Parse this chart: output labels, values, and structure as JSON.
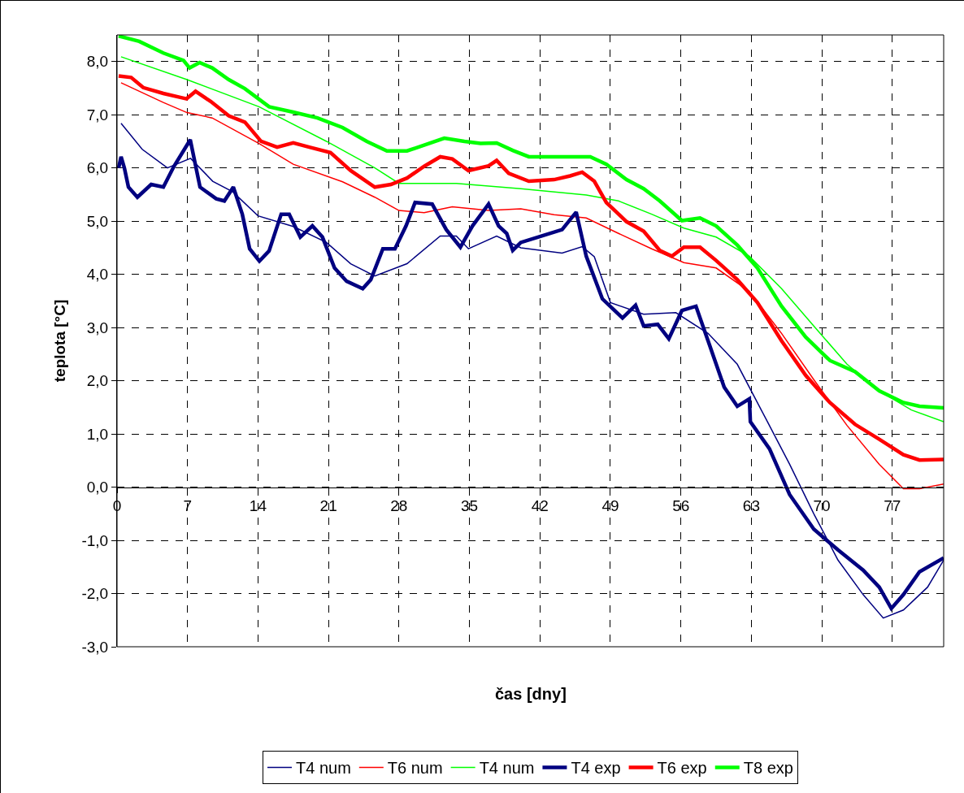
{
  "chart_data": {
    "type": "line",
    "xlabel": "čas [dny]",
    "ylabel": "teplota [°C]",
    "xlim": [
      0,
      82.1
    ],
    "xticks": [
      0,
      7,
      14,
      21,
      28,
      35,
      42,
      49,
      56,
      63,
      70,
      77
    ],
    "ylim": [
      -3,
      8.5
    ],
    "yticks": [
      {
        "value": -3,
        "label": "-3,0"
      },
      {
        "value": -2,
        "label": "-2,0"
      },
      {
        "value": -1,
        "label": "-1,0"
      },
      {
        "value": 0,
        "label": "0,0"
      },
      {
        "value": 1,
        "label": "1,0"
      },
      {
        "value": 2,
        "label": "2,0"
      },
      {
        "value": 3,
        "label": "3,0"
      },
      {
        "value": 4,
        "label": "4,0"
      },
      {
        "value": 5,
        "label": "5,0"
      },
      {
        "value": 6,
        "label": "6,0"
      },
      {
        "value": 7,
        "label": "7,0"
      },
      {
        "value": 8,
        "label": "8,0"
      }
    ],
    "grid": true,
    "legend": "bottom",
    "series": [
      {
        "name": "T4 num",
        "color": "#000080",
        "x": [
          0.4,
          2.5,
          5.0,
          7.3,
          9.5,
          11.5,
          14,
          17.5,
          20.8,
          23.2,
          25.6,
          28.8,
          32.1,
          33.7,
          34.9,
          37.7,
          40.1,
          44.2,
          46.2,
          47.4,
          49,
          52.3,
          55.5,
          58.7,
          61.6,
          64.4,
          66.8,
          69.2,
          71.6,
          74.1,
          76.1,
          78.1,
          80.5,
          82.1
        ],
        "values": [
          6.84,
          6.35,
          6.0,
          6.18,
          5.75,
          5.55,
          5.1,
          4.9,
          4.6,
          4.2,
          3.97,
          4.2,
          4.72,
          4.72,
          4.48,
          4.72,
          4.5,
          4.4,
          4.52,
          4.33,
          3.47,
          3.25,
          3.28,
          2.89,
          2.31,
          1.3,
          0.43,
          -0.5,
          -1.37,
          -2.02,
          -2.46,
          -2.31,
          -1.88,
          -1.37
        ]
      },
      {
        "name": "T6 num",
        "color": "#ff0000",
        "x": [
          0.4,
          4.6,
          6.95,
          9.45,
          14.1,
          17.5,
          22.4,
          25.6,
          28,
          30.5,
          33.3,
          36.9,
          40.1,
          43.4,
          46.6,
          49.8,
          53.1,
          56.3,
          59.5,
          62.8,
          66,
          69.2,
          72.5,
          75.7,
          78.1,
          79.7,
          82.1
        ],
        "values": [
          7.6,
          7.23,
          7.04,
          6.94,
          6.46,
          6.07,
          5.74,
          5.45,
          5.2,
          5.16,
          5.27,
          5.2,
          5.23,
          5.12,
          5.06,
          4.77,
          4.48,
          4.22,
          4.12,
          3.68,
          2.89,
          2.02,
          1.16,
          0.43,
          -0.03,
          -0.03,
          0.06
        ]
      },
      {
        "name": "T4 num",
        "color": "#00ff00",
        "x": [
          0.4,
          6.95,
          14.1,
          20.8,
          25.6,
          28,
          33.7,
          40.1,
          46.6,
          49.8,
          53.1,
          56.3,
          59.5,
          62.8,
          66,
          69.2,
          72.5,
          75.7,
          78.9,
          82.1
        ],
        "values": [
          8.09,
          7.66,
          7.15,
          6.5,
          6.0,
          5.71,
          5.71,
          5.61,
          5.49,
          5.38,
          5.13,
          4.87,
          4.7,
          4.34,
          3.73,
          3.03,
          2.31,
          1.81,
          1.45,
          1.23
        ]
      },
      {
        "name": "T4 exp",
        "color": "#000080",
        "x": [
          0.16,
          0.4,
          0.73,
          1.13,
          2.02,
          3.39,
          4.6,
          5.65,
          7.27,
          8.24,
          9.85,
          10.66,
          11.55,
          12.44,
          13.17,
          14.14,
          15.1,
          16.3,
          17.1,
          18.2,
          19.4,
          20.4,
          21.6,
          22.8,
          24.4,
          25.2,
          26.4,
          27.6,
          28.7,
          29.6,
          31.3,
          32.7,
          34.1,
          35.3,
          36.9,
          37.9,
          38.7,
          39.3,
          40.1,
          41.8,
          44.2,
          45.6,
          46.6,
          48.2,
          50.2,
          51.5,
          52.3,
          53.7,
          54.8,
          56.1,
          57.5,
          58.7,
          60.3,
          61.6,
          62.8,
          62.9,
          64.8,
          66.8,
          69.2,
          71.6,
          74.1,
          75.7,
          76.9,
          78.1,
          79.7,
          82.1
        ],
        "values": [
          6.0,
          6.21,
          6.0,
          5.64,
          5.45,
          5.69,
          5.64,
          6.03,
          6.53,
          5.64,
          5.42,
          5.38,
          5.64,
          5.13,
          4.48,
          4.25,
          4.44,
          5.13,
          5.13,
          4.7,
          4.91,
          4.7,
          4.12,
          3.87,
          3.73,
          3.9,
          4.48,
          4.48,
          4.91,
          5.35,
          5.32,
          4.84,
          4.51,
          4.91,
          5.32,
          4.91,
          4.77,
          4.45,
          4.6,
          4.7,
          4.84,
          5.17,
          4.34,
          3.54,
          3.18,
          3.42,
          3.03,
          3.06,
          2.79,
          3.32,
          3.4,
          2.75,
          1.88,
          1.52,
          1.66,
          1.23,
          0.72,
          -0.14,
          -0.79,
          -1.18,
          -1.56,
          -1.88,
          -2.28,
          -2.02,
          -1.59,
          -1.33
        ]
      },
      {
        "name": "T6 exp",
        "color": "#ff0000",
        "x": [
          0.16,
          1.4,
          2.6,
          4.6,
          6.2,
          6.9,
          7.8,
          9.3,
          11.1,
          12.7,
          14.3,
          15.9,
          17.5,
          19.1,
          21.2,
          23.2,
          25.6,
          27.2,
          28.8,
          30.5,
          32.1,
          33.3,
          34.9,
          36.9,
          37.7,
          38.9,
          40.9,
          43.4,
          45,
          46.2,
          47.4,
          48.6,
          50.6,
          52.3,
          53.9,
          55.1,
          56.3,
          57.9,
          59.5,
          61.6,
          63.6,
          66,
          68.4,
          70.8,
          73.3,
          75.7,
          78.1,
          79.7,
          82.1
        ],
        "values": [
          7.73,
          7.7,
          7.51,
          7.4,
          7.33,
          7.3,
          7.44,
          7.25,
          6.98,
          6.86,
          6.5,
          6.39,
          6.47,
          6.39,
          6.29,
          5.95,
          5.64,
          5.69,
          5.81,
          6.03,
          6.21,
          6.17,
          5.95,
          6.04,
          6.14,
          5.9,
          5.75,
          5.78,
          5.85,
          5.92,
          5.75,
          5.35,
          4.99,
          4.81,
          4.45,
          4.34,
          4.51,
          4.51,
          4.26,
          3.9,
          3.47,
          2.75,
          2.1,
          1.59,
          1.18,
          0.9,
          0.61,
          0.51,
          0.52
        ]
      },
      {
        "name": "T8 exp",
        "color": "#00ff00",
        "x": [
          0.16,
          2.2,
          4.6,
          6.6,
          7.2,
          8.2,
          9.45,
          11.1,
          12.7,
          15.1,
          17.5,
          19.9,
          22.4,
          24.8,
          26.8,
          28.8,
          30.5,
          32.5,
          34.5,
          36.1,
          37.7,
          39.3,
          40.9,
          45,
          47,
          48.6,
          50.6,
          52.3,
          53.9,
          56.1,
          57.9,
          59.5,
          61.6,
          63.6,
          66,
          68.4,
          70.8,
          73.3,
          75.7,
          78.1,
          79.7,
          82.1
        ],
        "values": [
          8.48,
          8.38,
          8.16,
          8.02,
          7.88,
          7.98,
          7.88,
          7.66,
          7.49,
          7.15,
          7.05,
          6.94,
          6.76,
          6.5,
          6.32,
          6.32,
          6.43,
          6.56,
          6.5,
          6.46,
          6.47,
          6.33,
          6.21,
          6.21,
          6.21,
          6.07,
          5.78,
          5.61,
          5.38,
          5.01,
          5.06,
          4.91,
          4.55,
          4.12,
          3.4,
          2.82,
          2.38,
          2.17,
          1.81,
          1.59,
          1.52,
          1.49
        ]
      }
    ]
  }
}
